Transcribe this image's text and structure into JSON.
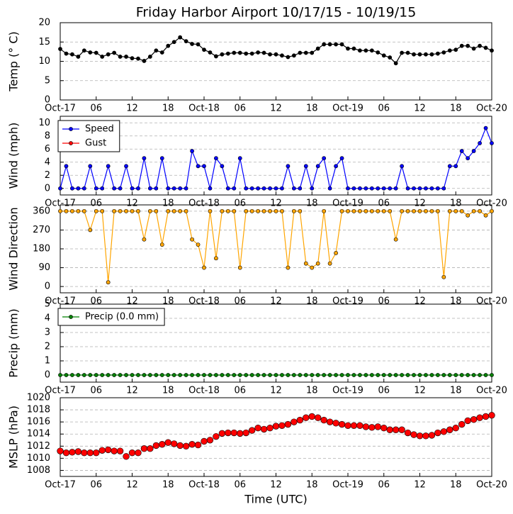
{
  "chart_data": [
    {
      "type": "line",
      "title": "Friday Harbor Airport 10/17/15 - 10/19/15",
      "y_label": "Temp (° C)",
      "x": [
        0,
        1,
        2,
        3,
        4,
        5,
        6,
        7,
        8,
        9,
        10,
        11,
        12,
        13,
        14,
        15,
        16,
        17,
        18,
        19,
        20,
        21,
        22,
        23,
        24,
        25,
        26,
        27,
        28,
        29,
        30,
        31,
        32,
        33,
        34,
        35,
        36,
        37,
        38,
        39,
        40,
        41,
        42,
        43,
        44,
        45,
        46,
        47,
        48,
        49,
        50,
        51,
        52,
        53,
        54,
        55,
        56,
        57,
        58,
        59,
        60,
        61,
        62,
        63,
        64,
        65,
        66,
        67,
        68,
        69,
        70,
        71,
        72
      ],
      "xlim": [
        0,
        72
      ],
      "xticks": [
        {
          "value": 0,
          "label": "Oct-17"
        },
        {
          "value": 6,
          "label": "06"
        },
        {
          "value": 12,
          "label": "12"
        },
        {
          "value": 18,
          "label": "18"
        },
        {
          "value": 24,
          "label": "Oct-18"
        },
        {
          "value": 30,
          "label": "06"
        },
        {
          "value": 36,
          "label": "12"
        },
        {
          "value": 42,
          "label": "18"
        },
        {
          "value": 48,
          "label": "Oct-19"
        },
        {
          "value": 54,
          "label": "06"
        },
        {
          "value": 60,
          "label": "12"
        },
        {
          "value": 66,
          "label": "18"
        },
        {
          "value": 72,
          "label": "Oct-20"
        }
      ],
      "ylim": [
        0,
        20
      ],
      "yticks": [
        0,
        5,
        10,
        15,
        20
      ],
      "grid": true,
      "series": [
        {
          "color": "#000000",
          "values": [
            13.2,
            12,
            11.8,
            11.2,
            12.8,
            12.3,
            12.2,
            11.2,
            11.8,
            12.2,
            11.2,
            11.2,
            10.8,
            10.7,
            10.1,
            11.2,
            12.8,
            12.3,
            14,
            15,
            16.2,
            15.2,
            14.5,
            14.4,
            13,
            12.3,
            11.3,
            11.8,
            12,
            12.2,
            12.2,
            12,
            12,
            12.3,
            12.2,
            11.8,
            11.8,
            11.5,
            11.1,
            11.5,
            12.2,
            12.2,
            12.2,
            13.3,
            14.4,
            14.4,
            14.4,
            14.4,
            13.3,
            13.3,
            12.8,
            12.8,
            12.8,
            12.3,
            11.5,
            11,
            9.5,
            12.2,
            12.2,
            11.8,
            11.8,
            11.8,
            11.8,
            12,
            12.3,
            12.8,
            13,
            14,
            14,
            13.3,
            14,
            13.5,
            12.8
          ]
        }
      ]
    },
    {
      "type": "line",
      "y_label": "Wind (mph)",
      "x": [
        0,
        1,
        2,
        3,
        4,
        5,
        6,
        7,
        8,
        9,
        10,
        11,
        12,
        13,
        14,
        15,
        16,
        17,
        18,
        19,
        20,
        21,
        22,
        23,
        24,
        25,
        26,
        27,
        28,
        29,
        30,
        31,
        32,
        33,
        34,
        35,
        36,
        37,
        38,
        39,
        40,
        41,
        42,
        43,
        44,
        45,
        46,
        47,
        48,
        49,
        50,
        51,
        52,
        53,
        54,
        55,
        56,
        57,
        58,
        59,
        60,
        61,
        62,
        63,
        64,
        65,
        66,
        67,
        68,
        69,
        70,
        71,
        72
      ],
      "xlim": [
        0,
        72
      ],
      "xticks": [
        {
          "value": 0,
          "label": "Oct-17"
        },
        {
          "value": 6,
          "label": "06"
        },
        {
          "value": 12,
          "label": "12"
        },
        {
          "value": 18,
          "label": "18"
        },
        {
          "value": 24,
          "label": "Oct-18"
        },
        {
          "value": 30,
          "label": "06"
        },
        {
          "value": 36,
          "label": "12"
        },
        {
          "value": 42,
          "label": "18"
        },
        {
          "value": 48,
          "label": "Oct-19"
        },
        {
          "value": 54,
          "label": "06"
        },
        {
          "value": 60,
          "label": "12"
        },
        {
          "value": 66,
          "label": "18"
        },
        {
          "value": 72,
          "label": "Oct-20"
        }
      ],
      "ylim": [
        -1,
        11
      ],
      "yticks": [
        0,
        2,
        4,
        6,
        8,
        10
      ],
      "grid": true,
      "legend": "upper left",
      "series": [
        {
          "name": "Speed",
          "color": "#0000ff",
          "values": [
            0,
            3.4,
            0,
            0,
            0,
            3.4,
            0,
            0,
            3.4,
            0,
            0,
            3.4,
            0,
            0,
            4.6,
            0,
            0,
            4.6,
            0,
            0,
            0,
            0,
            5.7,
            3.4,
            3.4,
            0,
            4.6,
            3.4,
            0,
            0,
            4.6,
            0,
            0,
            0,
            0,
            0,
            0,
            0,
            3.4,
            0,
            0,
            3.4,
            0,
            3.4,
            4.6,
            0,
            3.4,
            4.6,
            0,
            0,
            0,
            0,
            0,
            0,
            0,
            0,
            0,
            3.4,
            0,
            0,
            0,
            0,
            0,
            0,
            0,
            3.4,
            3.4,
            5.7,
            4.6,
            5.7,
            6.9,
            9.2,
            6.9
          ]
        },
        {
          "name": "Gust",
          "color": "#ff0000",
          "values": [
            null,
            null,
            null,
            null,
            null,
            null,
            null,
            null,
            null,
            null,
            null,
            null,
            null,
            null,
            null,
            null,
            null,
            null,
            null,
            null,
            null,
            null,
            null,
            null,
            null,
            null,
            null,
            null,
            null,
            null,
            null,
            null,
            null,
            null,
            null,
            null,
            null,
            null,
            null,
            null,
            null,
            null,
            null,
            null,
            null,
            null,
            null,
            null,
            null,
            null,
            null,
            null,
            null,
            null,
            null,
            null,
            null,
            null,
            null,
            null,
            null,
            null,
            null,
            null,
            null,
            null,
            null,
            null,
            null,
            null,
            null,
            null,
            null
          ]
        }
      ]
    },
    {
      "type": "line",
      "y_label": "Wind Direction",
      "x": [
        0,
        1,
        2,
        3,
        4,
        5,
        6,
        7,
        8,
        9,
        10,
        11,
        12,
        13,
        14,
        15,
        16,
        17,
        18,
        19,
        20,
        21,
        22,
        23,
        24,
        25,
        26,
        27,
        28,
        29,
        30,
        31,
        32,
        33,
        34,
        35,
        36,
        37,
        38,
        39,
        40,
        41,
        42,
        43,
        44,
        45,
        46,
        47,
        48,
        49,
        50,
        51,
        52,
        53,
        54,
        55,
        56,
        57,
        58,
        59,
        60,
        61,
        62,
        63,
        64,
        65,
        66,
        67,
        68,
        69,
        70,
        71,
        72
      ],
      "xlim": [
        0,
        72
      ],
      "xticks": [
        {
          "value": 0,
          "label": "Oct-17"
        },
        {
          "value": 6,
          "label": "06"
        },
        {
          "value": 12,
          "label": "12"
        },
        {
          "value": 18,
          "label": "18"
        },
        {
          "value": 24,
          "label": "Oct-18"
        },
        {
          "value": 30,
          "label": "06"
        },
        {
          "value": 36,
          "label": "12"
        },
        {
          "value": 42,
          "label": "18"
        },
        {
          "value": 48,
          "label": "Oct-19"
        },
        {
          "value": 54,
          "label": "06"
        },
        {
          "value": 60,
          "label": "12"
        },
        {
          "value": 66,
          "label": "18"
        },
        {
          "value": 72,
          "label": "Oct-20"
        }
      ],
      "ylim": [
        -30,
        390
      ],
      "yticks": [
        0,
        90,
        180,
        270,
        360
      ],
      "grid": true,
      "series": [
        {
          "color": "#ffa500",
          "values": [
            360,
            360,
            360,
            360,
            360,
            270,
            360,
            360,
            20,
            360,
            360,
            360,
            360,
            360,
            225,
            360,
            360,
            200,
            360,
            360,
            360,
            360,
            225,
            200,
            90,
            360,
            135,
            360,
            360,
            360,
            90,
            360,
            360,
            360,
            360,
            360,
            360,
            360,
            90,
            360,
            360,
            110,
            90,
            110,
            360,
            110,
            160,
            360,
            360,
            360,
            360,
            360,
            360,
            360,
            360,
            360,
            225,
            360,
            360,
            360,
            360,
            360,
            360,
            360,
            45,
            360,
            360,
            360,
            340,
            360,
            360,
            340,
            360
          ]
        }
      ]
    },
    {
      "type": "line",
      "y_label": "Precip (mm)",
      "x": [
        0,
        1,
        2,
        3,
        4,
        5,
        6,
        7,
        8,
        9,
        10,
        11,
        12,
        13,
        14,
        15,
        16,
        17,
        18,
        19,
        20,
        21,
        22,
        23,
        24,
        25,
        26,
        27,
        28,
        29,
        30,
        31,
        32,
        33,
        34,
        35,
        36,
        37,
        38,
        39,
        40,
        41,
        42,
        43,
        44,
        45,
        46,
        47,
        48,
        49,
        50,
        51,
        52,
        53,
        54,
        55,
        56,
        57,
        58,
        59,
        60,
        61,
        62,
        63,
        64,
        65,
        66,
        67,
        68,
        69,
        70,
        71,
        72
      ],
      "xlim": [
        0,
        72
      ],
      "xticks": [
        {
          "value": 0,
          "label": "Oct-17"
        },
        {
          "value": 6,
          "label": "06"
        },
        {
          "value": 12,
          "label": "12"
        },
        {
          "value": 18,
          "label": "18"
        },
        {
          "value": 24,
          "label": "Oct-18"
        },
        {
          "value": 30,
          "label": "06"
        },
        {
          "value": 36,
          "label": "12"
        },
        {
          "value": 42,
          "label": "18"
        },
        {
          "value": 48,
          "label": "Oct-19"
        },
        {
          "value": 54,
          "label": "06"
        },
        {
          "value": 60,
          "label": "12"
        },
        {
          "value": 66,
          "label": "18"
        },
        {
          "value": 72,
          "label": "Oct-20"
        }
      ],
      "ylim": [
        -0.5,
        5
      ],
      "yticks": [
        0,
        1,
        2,
        3,
        4,
        5
      ],
      "grid": true,
      "legend": "upper left",
      "series": [
        {
          "name": "Precip (0.0 mm)",
          "color": "#008000",
          "values": [
            0,
            0,
            0,
            0,
            0,
            0,
            0,
            0,
            0,
            0,
            0,
            0,
            0,
            0,
            0,
            0,
            0,
            0,
            0,
            0,
            0,
            0,
            0,
            0,
            0,
            0,
            0,
            0,
            0,
            0,
            0,
            0,
            0,
            0,
            0,
            0,
            0,
            0,
            0,
            0,
            0,
            0,
            0,
            0,
            0,
            0,
            0,
            0,
            0,
            0,
            0,
            0,
            0,
            0,
            0,
            0,
            0,
            0,
            0,
            0,
            0,
            0,
            0,
            0,
            0,
            0,
            0,
            0,
            0,
            0,
            0,
            0,
            0
          ]
        }
      ]
    },
    {
      "type": "scatter",
      "y_label": "MSLP (hPa)",
      "x_label": "Time (UTC)",
      "x": [
        0,
        1,
        2,
        3,
        4,
        5,
        6,
        7,
        8,
        9,
        10,
        11,
        12,
        13,
        14,
        15,
        16,
        17,
        18,
        19,
        20,
        21,
        22,
        23,
        24,
        25,
        26,
        27,
        28,
        29,
        30,
        31,
        32,
        33,
        34,
        35,
        36,
        37,
        38,
        39,
        40,
        41,
        42,
        43,
        44,
        45,
        46,
        47,
        48,
        49,
        50,
        51,
        52,
        53,
        54,
        55,
        56,
        57,
        58,
        59,
        60,
        61,
        62,
        63,
        64,
        65,
        66,
        67,
        68,
        69,
        70,
        71,
        72
      ],
      "xlim": [
        0,
        72
      ],
      "xticks": [
        {
          "value": 0,
          "label": "Oct-17"
        },
        {
          "value": 6,
          "label": "06"
        },
        {
          "value": 12,
          "label": "12"
        },
        {
          "value": 18,
          "label": "18"
        },
        {
          "value": 24,
          "label": "Oct-18"
        },
        {
          "value": 30,
          "label": "06"
        },
        {
          "value": 36,
          "label": "12"
        },
        {
          "value": 42,
          "label": "18"
        },
        {
          "value": 48,
          "label": "Oct-19"
        },
        {
          "value": 54,
          "label": "06"
        },
        {
          "value": 60,
          "label": "12"
        },
        {
          "value": 66,
          "label": "18"
        },
        {
          "value": 72,
          "label": "Oct-20"
        }
      ],
      "ylim": [
        1007,
        1020
      ],
      "yticks": [
        1008,
        1010,
        1012,
        1014,
        1016,
        1018,
        1020
      ],
      "grid": true,
      "series": [
        {
          "color": "#ff0000",
          "values": [
            1011.2,
            1010.9,
            1011,
            1011.1,
            1010.9,
            1010.9,
            1010.9,
            1011.3,
            1011.4,
            1011.2,
            1011.2,
            1010.3,
            1010.9,
            1010.9,
            1011.6,
            1011.6,
            1012.1,
            1012.3,
            1012.6,
            1012.4,
            1012.1,
            1012,
            1012.3,
            1012.2,
            1012.8,
            1013,
            1013.6,
            1014.1,
            1014.2,
            1014.2,
            1014.1,
            1014.2,
            1014.6,
            1015,
            1014.8,
            1015,
            1015.3,
            1015.4,
            1015.6,
            1016,
            1016.3,
            1016.7,
            1016.9,
            1016.7,
            1016.3,
            1016,
            1015.8,
            1015.6,
            1015.4,
            1015.4,
            1015.4,
            1015.2,
            1015.1,
            1015.2,
            1015,
            1014.7,
            1014.7,
            1014.7,
            1014.2,
            1013.9,
            1013.7,
            1013.7,
            1013.8,
            1014.2,
            1014.4,
            1014.7,
            1015,
            1015.6,
            1016.2,
            1016.4,
            1016.7,
            1016.9,
            1017.1
          ]
        }
      ]
    }
  ]
}
